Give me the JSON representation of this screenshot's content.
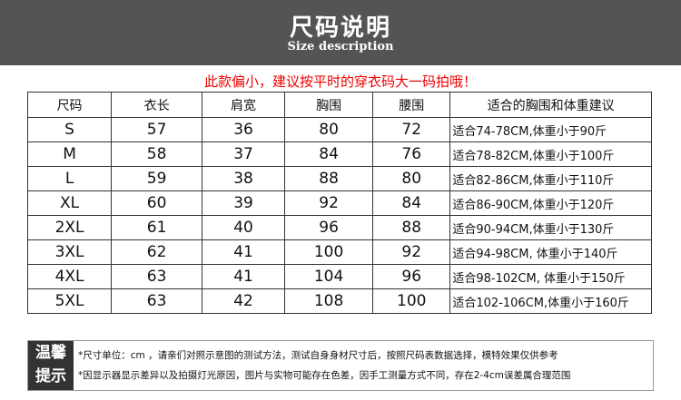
{
  "header": {
    "title": "尺码说明",
    "subtitle": "Size description"
  },
  "notice": "此款偏小，建议按平时的穿衣码大一码拍哦！",
  "table": {
    "columns": [
      "尺码",
      "衣长",
      "肩宽",
      "胸围",
      "腰围",
      "适合的胸围和体重建议"
    ],
    "rows": [
      [
        "S",
        "57",
        "36",
        "80",
        "72",
        "适合74-78CM,体重小于90斤"
      ],
      [
        "M",
        "58",
        "37",
        "84",
        "76",
        "适合78-82CM,体重小于100斤"
      ],
      [
        "L",
        "59",
        "38",
        "88",
        "80",
        "适合82-86CM,体重小于110斤"
      ],
      [
        "XL",
        "60",
        "39",
        "92",
        "84",
        "适合86-90CM,体重小于120斤"
      ],
      [
        "2XL",
        "61",
        "40",
        "96",
        "88",
        "适合90-94CM,体重小于130斤"
      ],
      [
        "3XL",
        "62",
        "41",
        "100",
        "92",
        "适合94-98CM, 体重小于140斤"
      ],
      [
        "4XL",
        "63",
        "41",
        "104",
        "96",
        "适合98-102CM, 体重小于150斤"
      ],
      [
        "5XL",
        "63",
        "42",
        "108",
        "100",
        "适合102-106CM,体重小于160斤"
      ]
    ]
  },
  "tips": {
    "label_line1": "温馨",
    "label_line2": "提示",
    "notes": [
      "*尺寸单位：cm ，请亲们对照示意图的测试方法，测试自身身材尺寸后，按照尺码表数据选择，模特效果仅供参考",
      "*因显示器显示差异以及拍摄灯光原因，图片与实物可能存在色差，因手工测量方式不同，存在2-4cm误差属合理范围"
    ]
  }
}
